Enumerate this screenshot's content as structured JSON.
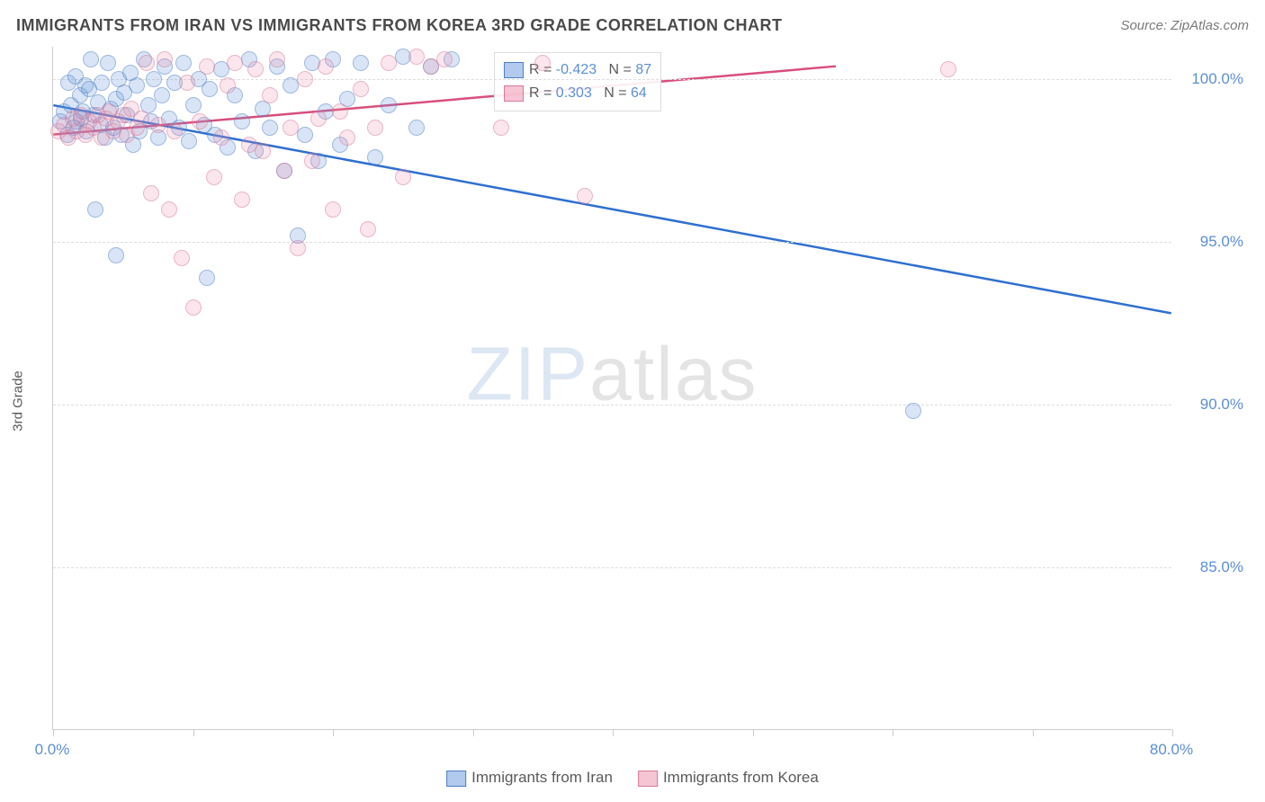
{
  "title": "IMMIGRANTS FROM IRAN VS IMMIGRANTS FROM KOREA 3RD GRADE CORRELATION CHART",
  "source": "Source: ZipAtlas.com",
  "ylabel": "3rd Grade",
  "watermark_zip": "ZIP",
  "watermark_atlas": "atlas",
  "chart": {
    "type": "scatter",
    "background_color": "#ffffff",
    "grid_color": "#dddddd",
    "axis_color": "#cccccc",
    "text_color": "#5a5a5a",
    "value_color": "#5b8fd6",
    "xlim": [
      0,
      80
    ],
    "ylim": [
      80,
      101
    ],
    "xticks": [
      0,
      10,
      20,
      30,
      40,
      50,
      60,
      70,
      80
    ],
    "xtick_labels": {
      "0": "0.0%",
      "80": "80.0%"
    },
    "yticks": [
      85,
      90,
      95,
      100
    ],
    "ytick_labels": {
      "85": "85.0%",
      "90": "90.0%",
      "95": "95.0%",
      "100": "100.0%"
    },
    "label_fontsize": 15,
    "tick_fontsize": 17,
    "title_fontsize": 18,
    "marker_size": 18,
    "marker_opacity": 0.55,
    "series": [
      {
        "name": "Immigrants from Iran",
        "fill": "rgba(100,150,220,0.45)",
        "stroke": "#4f7fc4",
        "line_color": "#2f6fd0",
        "R": "-0.423",
        "N": "87",
        "trend": {
          "x1": 0,
          "y1": 99.2,
          "x2": 80,
          "y2": 92.8
        },
        "points": [
          [
            0.5,
            98.7
          ],
          [
            0.8,
            99.0
          ],
          [
            1.0,
            98.3
          ],
          [
            1.1,
            99.9
          ],
          [
            1.3,
            99.2
          ],
          [
            1.5,
            98.5
          ],
          [
            1.6,
            100.1
          ],
          [
            1.7,
            98.7
          ],
          [
            1.9,
            99.5
          ],
          [
            2.0,
            98.8
          ],
          [
            2.1,
            99.0
          ],
          [
            2.3,
            99.8
          ],
          [
            2.4,
            98.4
          ],
          [
            2.6,
            99.7
          ],
          [
            2.7,
            100.6
          ],
          [
            2.9,
            98.9
          ],
          [
            3.0,
            96.0
          ],
          [
            3.2,
            99.3
          ],
          [
            3.4,
            98.6
          ],
          [
            3.5,
            99.9
          ],
          [
            3.7,
            98.2
          ],
          [
            3.9,
            100.5
          ],
          [
            4.1,
            99.1
          ],
          [
            4.3,
            98.5
          ],
          [
            4.5,
            99.4
          ],
          [
            4.5,
            94.6
          ],
          [
            4.7,
            100.0
          ],
          [
            4.9,
            98.3
          ],
          [
            5.1,
            99.6
          ],
          [
            5.3,
            98.9
          ],
          [
            5.5,
            100.2
          ],
          [
            5.7,
            98.0
          ],
          [
            6.0,
            99.8
          ],
          [
            6.2,
            98.4
          ],
          [
            6.5,
            100.6
          ],
          [
            6.8,
            99.2
          ],
          [
            7.0,
            98.7
          ],
          [
            7.2,
            100.0
          ],
          [
            7.5,
            98.2
          ],
          [
            7.8,
            99.5
          ],
          [
            8.0,
            100.4
          ],
          [
            8.3,
            98.8
          ],
          [
            8.7,
            99.9
          ],
          [
            9.0,
            98.5
          ],
          [
            9.3,
            100.5
          ],
          [
            9.7,
            98.1
          ],
          [
            10.0,
            99.2
          ],
          [
            10.4,
            100.0
          ],
          [
            10.8,
            98.6
          ],
          [
            11.0,
            93.9
          ],
          [
            11.2,
            99.7
          ],
          [
            11.6,
            98.3
          ],
          [
            12.0,
            100.3
          ],
          [
            12.5,
            97.9
          ],
          [
            13.0,
            99.5
          ],
          [
            13.5,
            98.7
          ],
          [
            14.0,
            100.6
          ],
          [
            14.5,
            97.8
          ],
          [
            15.0,
            99.1
          ],
          [
            15.5,
            98.5
          ],
          [
            16.0,
            100.4
          ],
          [
            16.5,
            97.2
          ],
          [
            17.0,
            99.8
          ],
          [
            17.5,
            95.2
          ],
          [
            18.0,
            98.3
          ],
          [
            18.5,
            100.5
          ],
          [
            19.0,
            97.5
          ],
          [
            19.5,
            99.0
          ],
          [
            20.0,
            100.6
          ],
          [
            20.5,
            98.0
          ],
          [
            21.0,
            99.4
          ],
          [
            22.0,
            100.5
          ],
          [
            23.0,
            97.6
          ],
          [
            24.0,
            99.2
          ],
          [
            25.0,
            100.7
          ],
          [
            26.0,
            98.5
          ],
          [
            27.0,
            100.4
          ],
          [
            28.5,
            100.6
          ],
          [
            61.5,
            89.8
          ]
        ]
      },
      {
        "name": "Immigrants from Korea",
        "fill": "rgba(235,140,170,0.4)",
        "stroke": "#d67a9a",
        "line_color": "#d84f7b",
        "R": "0.303",
        "N": "64",
        "trend": {
          "x1": 0,
          "y1": 98.3,
          "x2": 56,
          "y2": 100.4
        },
        "points": [
          [
            0.4,
            98.4
          ],
          [
            0.8,
            98.6
          ],
          [
            1.1,
            98.2
          ],
          [
            1.4,
            98.8
          ],
          [
            1.7,
            98.4
          ],
          [
            2.0,
            98.9
          ],
          [
            2.3,
            98.3
          ],
          [
            2.6,
            98.7
          ],
          [
            2.9,
            98.5
          ],
          [
            3.2,
            98.9
          ],
          [
            3.5,
            98.2
          ],
          [
            3.8,
            98.8
          ],
          [
            4.0,
            99.0
          ],
          [
            4.3,
            98.4
          ],
          [
            4.6,
            98.7
          ],
          [
            5.0,
            98.9
          ],
          [
            5.3,
            98.3
          ],
          [
            5.6,
            99.1
          ],
          [
            6.0,
            98.5
          ],
          [
            6.3,
            98.8
          ],
          [
            6.7,
            100.5
          ],
          [
            7.0,
            96.5
          ],
          [
            7.5,
            98.6
          ],
          [
            8.0,
            100.6
          ],
          [
            8.3,
            96.0
          ],
          [
            8.7,
            98.4
          ],
          [
            9.2,
            94.5
          ],
          [
            9.6,
            99.9
          ],
          [
            10.0,
            93.0
          ],
          [
            10.5,
            98.7
          ],
          [
            11.0,
            100.4
          ],
          [
            11.5,
            97.0
          ],
          [
            12.0,
            98.2
          ],
          [
            12.5,
            99.8
          ],
          [
            13.0,
            100.5
          ],
          [
            13.5,
            96.3
          ],
          [
            14.0,
            98.0
          ],
          [
            14.5,
            100.3
          ],
          [
            15.0,
            97.8
          ],
          [
            15.5,
            99.5
          ],
          [
            16.0,
            100.6
          ],
          [
            16.5,
            97.2
          ],
          [
            17.0,
            98.5
          ],
          [
            17.5,
            94.8
          ],
          [
            18.0,
            100.0
          ],
          [
            18.5,
            97.5
          ],
          [
            19.0,
            98.8
          ],
          [
            19.5,
            100.4
          ],
          [
            20.0,
            96.0
          ],
          [
            20.5,
            99.0
          ],
          [
            21.0,
            98.2
          ],
          [
            22.0,
            99.7
          ],
          [
            22.5,
            95.4
          ],
          [
            23.0,
            98.5
          ],
          [
            24.0,
            100.5
          ],
          [
            25.0,
            97.0
          ],
          [
            26.0,
            100.7
          ],
          [
            27.0,
            100.4
          ],
          [
            28.0,
            100.6
          ],
          [
            32.0,
            98.5
          ],
          [
            35.0,
            100.5
          ],
          [
            38.0,
            96.4
          ],
          [
            64.0,
            100.3
          ]
        ]
      }
    ]
  },
  "stats_legend": {
    "R_label": "R =",
    "N_label": "N ="
  }
}
